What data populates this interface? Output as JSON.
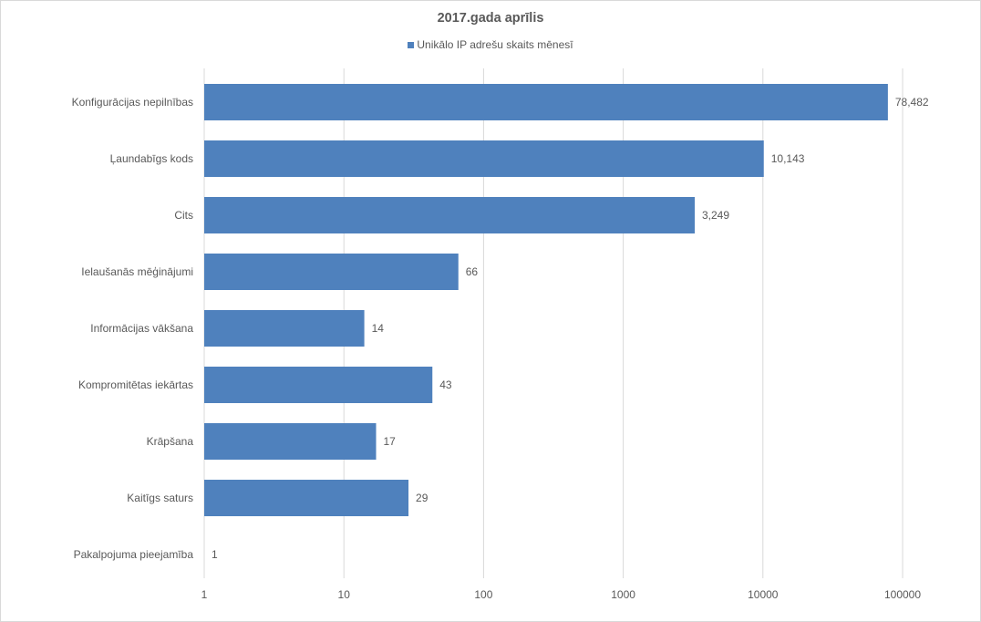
{
  "chart_data": {
    "type": "bar",
    "orientation": "horizontal",
    "title": "2017.gada aprīlis",
    "xscale": "log",
    "xlim": [
      1,
      100000
    ],
    "grid": true,
    "legend_position": "top",
    "bar_color": "#4f81bd",
    "tick_labels": [
      "1",
      "10",
      "100",
      "1000",
      "10000",
      "100000"
    ],
    "categories": [
      "Konfigurācijas nepilnības",
      "Ļaundabīgs kods",
      "Cits",
      "Ielaušanās mēģinājumi",
      "Informācijas vākšana",
      "Kompromitētas iekārtas",
      "Krāpšana",
      "Kaitīgs saturs",
      "Pakalpojuma pieejamība"
    ],
    "series": [
      {
        "name": "Unikālo IP adrešu skaits mēnesī",
        "values": [
          78482,
          10143,
          3249,
          66,
          14,
          43,
          17,
          29,
          1
        ],
        "value_labels": [
          "78,482",
          "10,143",
          "3,249",
          "66",
          "14",
          "43",
          "17",
          "29",
          "1"
        ]
      }
    ]
  }
}
